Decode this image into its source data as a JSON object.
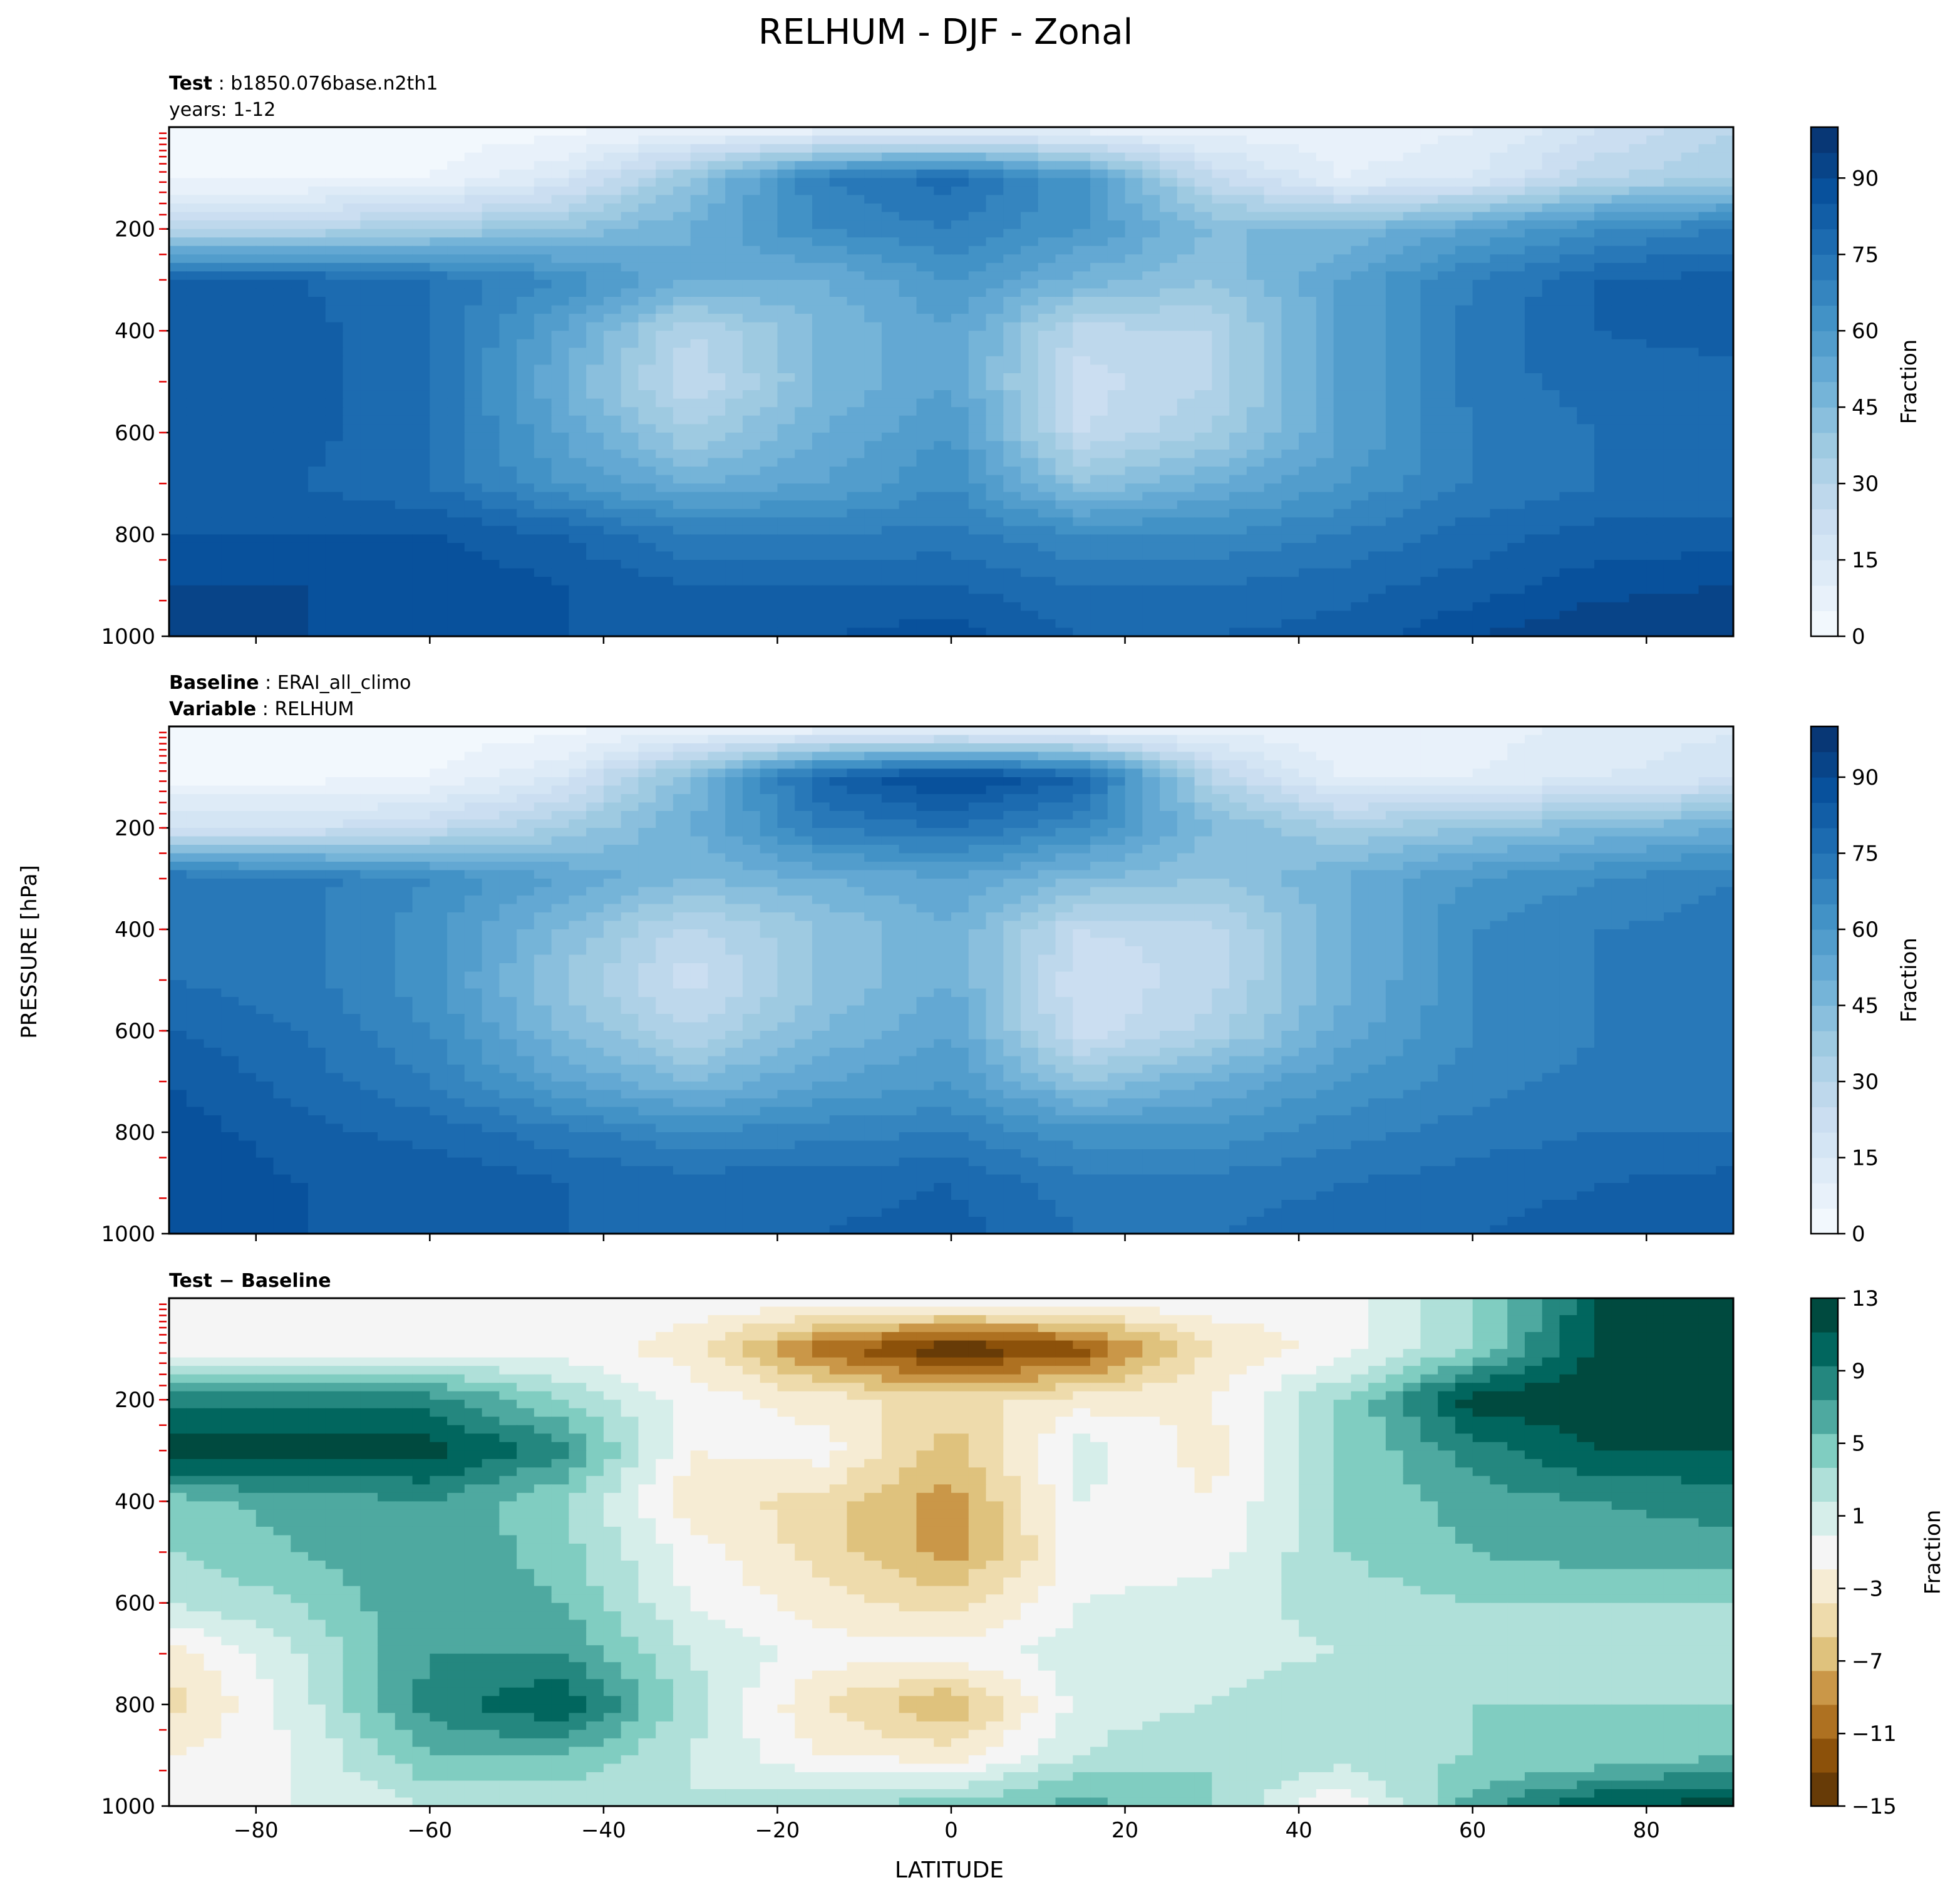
{
  "figure": {
    "title": "RELHUM - DJF - Zonal",
    "shared_ylabel": "PRESSURE [hPa]",
    "shared_xlabel": "LATITUDE",
    "x_ticks": [
      -80,
      -60,
      -40,
      -20,
      0,
      20,
      40,
      60,
      80
    ],
    "y_ticks": [
      200,
      400,
      600,
      800,
      1000
    ]
  },
  "panels": [
    {
      "id": "test",
      "label_lines": [
        {
          "bold": "Test",
          "sep": " : ",
          "text": "b1850.076base.n2th1"
        },
        {
          "bold": "",
          "sep": "",
          "text": "years: 1-12"
        }
      ],
      "colorbar": {
        "label": "Fraction",
        "ticks": [
          "0",
          "15",
          "30",
          "45",
          "60",
          "75",
          "90"
        ],
        "min": 0,
        "max": 100
      }
    },
    {
      "id": "baseline",
      "label_lines": [
        {
          "bold": "Baseline",
          "sep": " : ",
          "text": "ERAI_all_climo"
        },
        {
          "bold": "Variable",
          "sep": " : ",
          "text": "RELHUM"
        }
      ],
      "colorbar": {
        "label": "Fraction",
        "ticks": [
          "0",
          "15",
          "30",
          "45",
          "60",
          "75",
          "90"
        ],
        "min": 0,
        "max": 100
      }
    },
    {
      "id": "diff",
      "label_lines": [
        {
          "bold": "Test − Baseline",
          "sep": "",
          "text": ""
        }
      ],
      "colorbar": {
        "label": "Fraction",
        "ticks": [
          "−15",
          "−11",
          "−7",
          "−3",
          "1",
          "5",
          "9",
          "13"
        ],
        "min": -15,
        "max": 13
      }
    }
  ],
  "chart_data": [
    {
      "type": "heatmap",
      "panel": "Test",
      "x": [
        -90,
        -75,
        -60,
        -45,
        -30,
        -15,
        0,
        15,
        30,
        45,
        60,
        75,
        90
      ],
      "y": [
        10,
        100,
        200,
        300,
        400,
        500,
        600,
        700,
        800,
        900,
        1000
      ],
      "z": [
        [
          2,
          2,
          2,
          4,
          8,
          10,
          12,
          10,
          8,
          6,
          10,
          20,
          30
        ],
        [
          3,
          3,
          5,
          15,
          40,
          70,
          78,
          60,
          25,
          10,
          15,
          30,
          35
        ],
        [
          30,
          30,
          35,
          40,
          50,
          65,
          70,
          60,
          45,
          45,
          55,
          65,
          70
        ],
        [
          80,
          80,
          75,
          65,
          50,
          50,
          60,
          48,
          40,
          55,
          70,
          80,
          82
        ],
        [
          82,
          82,
          75,
          55,
          30,
          45,
          55,
          28,
          30,
          55,
          72,
          80,
          82
        ],
        [
          82,
          82,
          75,
          50,
          25,
          45,
          55,
          22,
          30,
          55,
          72,
          78,
          78
        ],
        [
          85,
          82,
          75,
          55,
          35,
          50,
          60,
          25,
          35,
          55,
          70,
          75,
          75
        ],
        [
          85,
          80,
          75,
          60,
          50,
          55,
          65,
          40,
          50,
          60,
          70,
          75,
          75
        ],
        [
          85,
          85,
          85,
          80,
          70,
          70,
          72,
          65,
          65,
          70,
          78,
          82,
          82
        ],
        [
          90,
          90,
          90,
          85,
          80,
          80,
          80,
          75,
          75,
          78,
          82,
          88,
          90
        ],
        [
          90,
          90,
          88,
          85,
          82,
          85,
          88,
          80,
          80,
          82,
          90,
          95,
          95
        ]
      ],
      "colorbar_ticks": [
        0,
        15,
        30,
        45,
        60,
        75,
        90
      ],
      "colorbar_label": "Fraction",
      "ylim": [
        1000,
        0
      ],
      "xlim": [
        -90,
        90
      ]
    },
    {
      "type": "heatmap",
      "panel": "Baseline",
      "x": [
        -90,
        -75,
        -60,
        -45,
        -30,
        -15,
        0,
        15,
        30,
        45,
        60,
        75,
        90
      ],
      "y": [
        10,
        100,
        200,
        300,
        400,
        500,
        600,
        700,
        800,
        900,
        1000
      ],
      "z": [
        [
          2,
          2,
          2,
          4,
          8,
          10,
          12,
          10,
          8,
          6,
          8,
          12,
          15
        ],
        [
          3,
          3,
          5,
          15,
          45,
          80,
          92,
          80,
          30,
          10,
          10,
          15,
          18
        ],
        [
          20,
          20,
          25,
          35,
          50,
          70,
          75,
          65,
          45,
          35,
          40,
          45,
          50
        ],
        [
          75,
          72,
          65,
          55,
          45,
          50,
          55,
          45,
          40,
          50,
          60,
          65,
          70
        ],
        [
          75,
          72,
          62,
          45,
          28,
          40,
          50,
          25,
          28,
          48,
          65,
          70,
          72
        ],
        [
          75,
          72,
          62,
          40,
          22,
          40,
          50,
          20,
          28,
          48,
          65,
          70,
          72
        ],
        [
          80,
          75,
          65,
          45,
          30,
          45,
          55,
          22,
          32,
          52,
          65,
          70,
          72
        ],
        [
          85,
          78,
          70,
          55,
          45,
          55,
          60,
          40,
          50,
          60,
          68,
          72,
          72
        ],
        [
          88,
          82,
          78,
          72,
          65,
          68,
          70,
          62,
          62,
          68,
          72,
          75,
          75
        ],
        [
          90,
          85,
          85,
          80,
          78,
          78,
          80,
          72,
          72,
          75,
          78,
          80,
          82
        ],
        [
          88,
          85,
          82,
          80,
          78,
          80,
          82,
          75,
          75,
          78,
          80,
          82,
          85
        ]
      ],
      "colorbar_ticks": [
        0,
        15,
        30,
        45,
        60,
        75,
        90
      ],
      "colorbar_label": "Fraction",
      "ylim": [
        1000,
        0
      ],
      "xlim": [
        -90,
        90
      ]
    },
    {
      "type": "heatmap",
      "panel": "Test − Baseline",
      "x": [
        -90,
        -75,
        -60,
        -45,
        -30,
        -15,
        0,
        15,
        30,
        45,
        60,
        75,
        90
      ],
      "y": [
        10,
        100,
        200,
        300,
        400,
        500,
        600,
        700,
        800,
        900,
        1000
      ],
      "z": [
        [
          0,
          0,
          0,
          0,
          0,
          0,
          0,
          0,
          0,
          0,
          5,
          13,
          15
        ],
        [
          0,
          0,
          0,
          0,
          -2,
          -10,
          -15,
          -12,
          -3,
          0,
          5,
          14,
          15
        ],
        [
          10,
          10,
          10,
          5,
          0,
          -2,
          -4,
          -2,
          -1,
          5,
          14,
          15,
          15
        ],
        [
          15,
          14,
          14,
          10,
          -1,
          0,
          -6,
          2,
          -2,
          5,
          10,
          13,
          13
        ],
        [
          6,
          8,
          9,
          5,
          -2,
          -4,
          -8,
          1,
          -1,
          5,
          8,
          9,
          10
        ],
        [
          5,
          7,
          9,
          6,
          0,
          -4,
          -8,
          0,
          0,
          5,
          7,
          8,
          8
        ],
        [
          3,
          5,
          9,
          7,
          1,
          -2,
          -4,
          1,
          2,
          4,
          5,
          5,
          5
        ],
        [
          -2,
          3,
          9,
          9,
          3,
          0,
          0,
          2,
          2,
          3,
          3,
          4,
          4
        ],
        [
          -4,
          2,
          10,
          13,
          4,
          -3,
          -7,
          2,
          3,
          5,
          5,
          5,
          5
        ],
        [
          -1,
          1,
          7,
          7,
          3,
          -1,
          -2,
          3,
          5,
          4,
          5,
          5,
          7
        ],
        [
          1,
          1,
          3,
          3,
          3,
          5,
          6,
          8,
          5,
          -1,
          8,
          13,
          14
        ]
      ],
      "colorbar_ticks": [
        -15,
        -11,
        -7,
        -3,
        1,
        5,
        9,
        13
      ],
      "colorbar_label": "Fraction",
      "ylim": [
        1000,
        0
      ],
      "xlim": [
        -90,
        90
      ]
    }
  ]
}
